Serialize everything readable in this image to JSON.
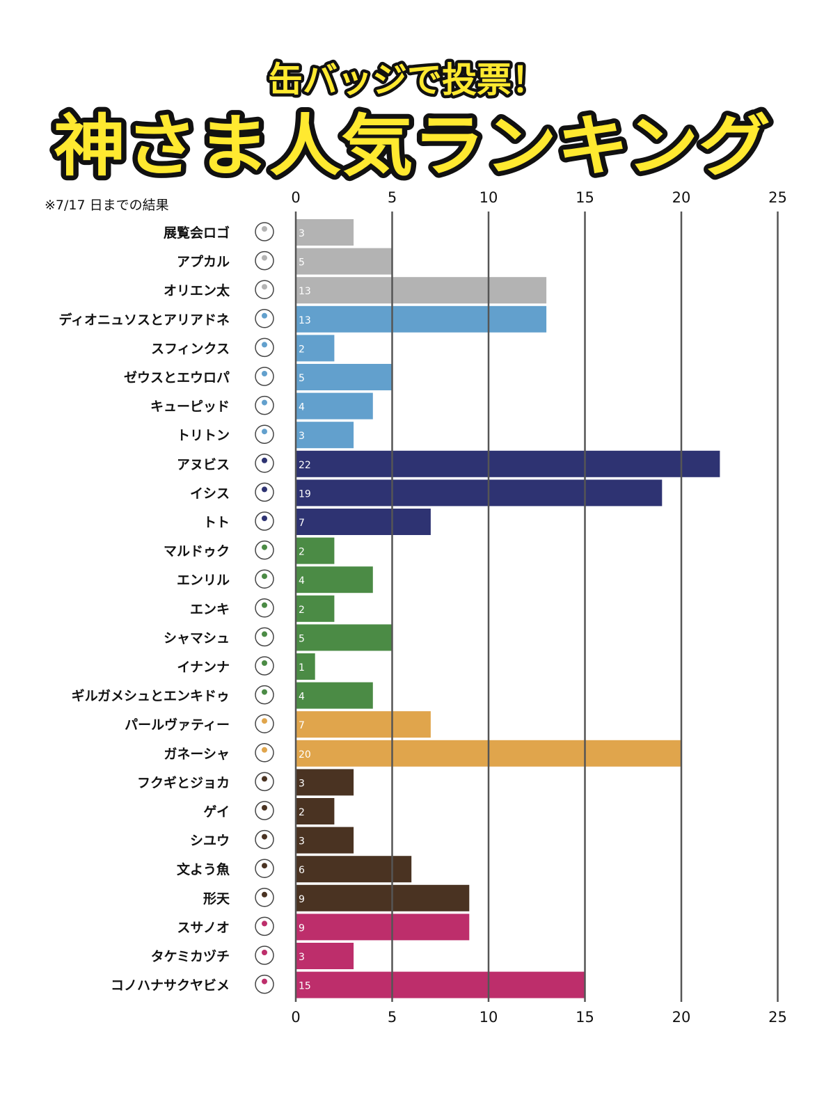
{
  "header": {
    "subtitle": "缶バッジで投票！",
    "title": "神さま人気ランキング"
  },
  "note": "※7/17 日までの結果",
  "chart_data": {
    "type": "bar",
    "orientation": "horizontal",
    "xlim": [
      0,
      25
    ],
    "ticks": [
      0,
      5,
      10,
      15,
      20,
      25
    ],
    "grid": true,
    "categories": [
      "展覧会ロゴ",
      "アプカル",
      "オリエン太",
      "ディオニュソスとアリアドネ",
      "スフィンクス",
      "ゼウスとエウロパ",
      "キューピッド",
      "トリトン",
      "アヌビス",
      "イシス",
      "トト",
      "マルドゥク",
      "エンリル",
      "エンキ",
      "シャマシュ",
      "イナンナ",
      "ギルガメシュとエンキドゥ",
      "パールヴァティー",
      "ガネーシャ",
      "フクギとジョカ",
      "ゲイ",
      "シユウ",
      "文よう魚",
      "形天",
      "スサノオ",
      "タケミカヅチ",
      "コノハナサクヤビメ"
    ],
    "values": [
      3,
      5,
      13,
      13,
      2,
      5,
      4,
      3,
      22,
      19,
      7,
      2,
      4,
      2,
      5,
      1,
      4,
      7,
      20,
      3,
      2,
      3,
      6,
      9,
      9,
      3,
      15
    ],
    "colors": [
      "#b3b3b3",
      "#b3b3b3",
      "#b3b3b3",
      "#62a0cd",
      "#62a0cd",
      "#62a0cd",
      "#62a0cd",
      "#62a0cd",
      "#2e3372",
      "#2e3372",
      "#2e3372",
      "#4b8b45",
      "#4b8b45",
      "#4b8b45",
      "#4b8b45",
      "#4b8b45",
      "#4b8b45",
      "#e0a54c",
      "#e0a54c",
      "#4a3322",
      "#4a3322",
      "#4a3322",
      "#4a3322",
      "#4a3322",
      "#bd2e6b",
      "#bd2e6b",
      "#bd2e6b"
    ]
  },
  "colors": {
    "title_fill": "#ffe930",
    "title_stroke": "#111111",
    "gridline": "#555555"
  }
}
